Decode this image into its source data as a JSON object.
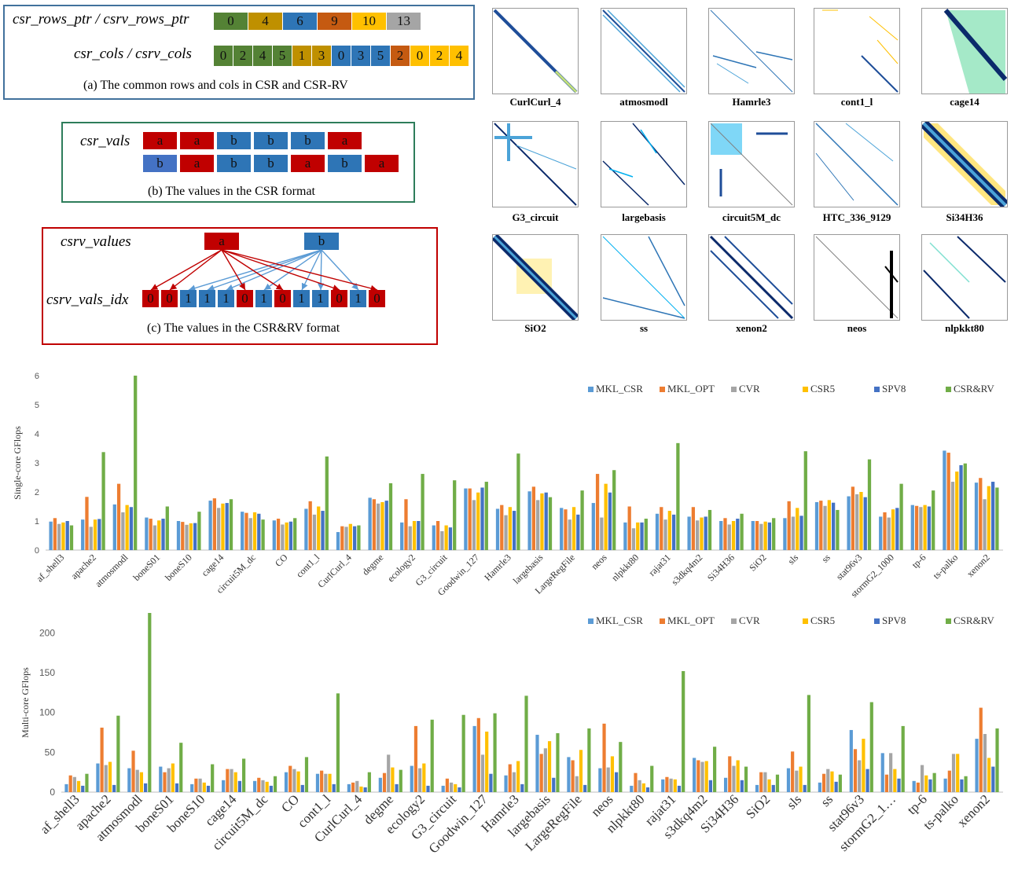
{
  "panel_a": {
    "rows_label": "csr_rows_ptr  / csrv_rows_ptr",
    "cols_label": "csr_cols / csrv_cols",
    "rows": [
      "0",
      "4",
      "6",
      "9",
      "10",
      "13"
    ],
    "rows_colors": [
      "#548235",
      "#bf9000",
      "#2e75b6",
      "#c55a11",
      "#ffc000",
      "#a5a5a5"
    ],
    "cols": [
      "0",
      "2",
      "4",
      "5",
      "1",
      "3",
      "0",
      "3",
      "5",
      "2",
      "0",
      "2",
      "4"
    ],
    "cols_colors": [
      "#548235",
      "#548235",
      "#548235",
      "#548235",
      "#bf9000",
      "#bf9000",
      "#2e75b6",
      "#2e75b6",
      "#2e75b6",
      "#c55a11",
      "#ffc000",
      "#ffc000",
      "#ffc000"
    ],
    "caption": "(a) The common rows and cols in CSR and CSR-RV"
  },
  "panel_b": {
    "label": "csr_vals",
    "row1": [
      "a",
      "a",
      "b",
      "b",
      "b",
      "a"
    ],
    "row2": [
      "b",
      "a",
      "b",
      "b",
      "a",
      "b",
      "a"
    ],
    "caption": "(b) The values in the CSR format"
  },
  "panel_c": {
    "values_label": "csrv_values",
    "idx_label": "csrv_vals_idx",
    "values": [
      "a",
      "b"
    ],
    "idx": [
      "0",
      "0",
      "1",
      "1",
      "1",
      "0",
      "1",
      "0",
      "1",
      "1",
      "0",
      "1",
      "0"
    ],
    "caption": "(c) The values in the CSR&RV format"
  },
  "colors": {
    "a": "#c00000",
    "b": "#2e75b6",
    "b_light": "#4472c4"
  },
  "matrices": [
    "CurlCurl_4",
    "atmosmodl",
    "Hamrle3",
    "cont1_l",
    "cage14",
    "G3_circuit",
    "largebasis",
    "circuit5M_dc",
    "HTC_336_9129",
    "Si34H36",
    "SiO2",
    "ss",
    "xenon2",
    "neos",
    "nlpkkt80"
  ],
  "chart_data": [
    {
      "type": "bar",
      "ylabel": "Single-core GFlops",
      "ylim": [
        0,
        6
      ],
      "yticks": [
        0,
        1,
        2,
        3,
        4,
        5,
        6
      ],
      "categories": [
        "af_shell3",
        "apache2",
        "atmosmodl",
        "boneS01",
        "boneS10",
        "cage14",
        "circuit5M_dc",
        "CO",
        "cont1_l",
        "CurlCurl_4",
        "degme",
        "ecology2",
        "G3_circuit",
        "Goodwin_127",
        "Hamrle3",
        "largebasis",
        "LargeRegFile",
        "neos",
        "nlpkkt80",
        "rajat31",
        "s3dkq4m2",
        "Si34H36",
        "SiO2",
        "sls",
        "ss",
        "stat96v3",
        "stormG2_1000",
        "tp-6",
        "ts-palko",
        "xenon2"
      ],
      "category_labels": [
        "af_shell3",
        "apache2",
        "atmosmodl",
        "boneS01",
        "boneS10",
        "cage14",
        "circuit5M_dc",
        "CO",
        "cont1_l",
        "CurlCurl_4",
        "degme",
        "ecology2",
        "G3_circuit",
        "Goodwin_127",
        "Hamrle3",
        "largebasis",
        "LargeRegFile",
        "neos",
        "nlpkkt80",
        "rajat31",
        "s3dkq4m2",
        "Si34H36",
        "SiO2",
        "sls",
        "ss",
        "stat96v3",
        "stormG2_1000",
        "tp-6",
        "ts-palko",
        "xenon2"
      ],
      "series": [
        {
          "name": "MKL_CSR",
          "color": "#5b9bd5",
          "values": [
            0.98,
            1.05,
            1.57,
            1.12,
            1.0,
            1.7,
            1.32,
            1.02,
            1.42,
            0.62,
            1.8,
            0.95,
            0.85,
            2.12,
            1.42,
            2.02,
            1.45,
            1.62,
            0.95,
            1.25,
            1.15,
            1.0,
            1.0,
            1.1,
            1.65,
            1.85,
            1.15,
            1.55,
            3.42,
            2.32
          ]
        },
        {
          "name": "MKL_OPT",
          "color": "#ed7d31",
          "values": [
            1.1,
            1.83,
            2.28,
            1.08,
            0.97,
            1.78,
            1.28,
            1.08,
            1.68,
            0.82,
            1.75,
            1.75,
            1.0,
            2.12,
            1.55,
            2.18,
            1.4,
            2.62,
            1.5,
            1.48,
            1.48,
            1.1,
            1.0,
            1.68,
            1.7,
            2.18,
            1.3,
            1.52,
            3.35,
            2.48
          ]
        },
        {
          "name": "CVR",
          "color": "#a5a5a5",
          "values": [
            0.9,
            0.8,
            1.3,
            0.85,
            0.87,
            1.45,
            1.1,
            0.88,
            1.22,
            0.8,
            1.6,
            0.82,
            0.65,
            1.72,
            1.2,
            1.72,
            1.05,
            1.12,
            0.75,
            1.05,
            1.02,
            0.88,
            0.9,
            1.15,
            1.52,
            1.92,
            1.12,
            1.48,
            2.35,
            1.75
          ]
        },
        {
          "name": "CSR5",
          "color": "#ffc000",
          "values": [
            0.95,
            1.05,
            1.55,
            1.02,
            0.92,
            1.6,
            1.3,
            0.95,
            1.5,
            0.9,
            1.65,
            1.0,
            0.85,
            1.98,
            1.48,
            1.95,
            1.48,
            2.28,
            0.95,
            1.35,
            1.12,
            1.0,
            0.98,
            1.45,
            1.72,
            2.0,
            1.4,
            1.55,
            2.7,
            2.2
          ]
        },
        {
          "name": "SPV8",
          "color": "#4472c4",
          "values": [
            1.0,
            1.07,
            1.48,
            1.08,
            0.93,
            1.62,
            1.25,
            0.98,
            1.35,
            0.82,
            1.7,
            1.0,
            0.78,
            2.15,
            1.35,
            1.98,
            1.22,
            1.98,
            0.95,
            1.22,
            1.15,
            1.08,
            0.95,
            1.18,
            1.63,
            1.82,
            1.45,
            1.5,
            2.92,
            2.35
          ]
        },
        {
          "name": "CSR&RV",
          "color": "#70ad47",
          "values": [
            0.85,
            3.37,
            6.0,
            1.5,
            1.32,
            1.75,
            1.05,
            1.1,
            3.22,
            0.85,
            2.3,
            2.62,
            2.4,
            2.35,
            3.32,
            1.82,
            2.05,
            2.75,
            1.08,
            3.68,
            1.38,
            1.25,
            1.1,
            3.4,
            1.38,
            3.12,
            2.28,
            2.05,
            2.98,
            2.15
          ]
        }
      ]
    },
    {
      "type": "bar",
      "ylabel": "Multi-core GFlops",
      "ylim": [
        0,
        225
      ],
      "yticks": [
        0,
        50,
        100,
        150,
        200
      ],
      "categories": [
        "af_shell3",
        "apache2",
        "atmosmodl",
        "boneS01",
        "boneS10",
        "cage14",
        "circuit5M_dc",
        "CO",
        "cont1_l",
        "CurlCurl_4",
        "degme",
        "ecology2",
        "G3_circuit",
        "Goodwin_127",
        "Hamrle3",
        "largebasis",
        "LargeRegFile",
        "neos",
        "nlpkkt80",
        "rajat31",
        "s3dkq4m2",
        "Si34H36",
        "SiO2",
        "sls",
        "ss",
        "stat96v3",
        "stormG2_1000",
        "tp-6",
        "ts-palko",
        "xenon2"
      ],
      "category_labels": [
        "af_shell3",
        "apache2",
        "atmosmodl",
        "boneS01",
        "boneS10",
        "cage14",
        "circuit5M_dc",
        "CO",
        "cont1_l",
        "CurlCurl_4",
        "degme",
        "ecology2",
        "G3_circuit",
        "Goodwin_127",
        "Hamrle3",
        "largebasis",
        "LargeRegFile",
        "neos",
        "nlpkkt80",
        "rajat31",
        "s3dkq4m2",
        "Si34H36",
        "SiO2",
        "sls",
        "ss",
        "stat96v3",
        "stormG2_1…",
        "tp-6",
        "ts-palko",
        "xenon2"
      ],
      "series": [
        {
          "name": "MKL_CSR",
          "color": "#5b9bd5",
          "values": [
            10,
            36,
            30,
            32,
            10,
            15,
            14,
            25,
            23,
            10,
            18,
            33,
            8,
            83,
            21,
            72,
            44,
            30,
            8,
            16,
            43,
            18,
            9,
            30,
            12,
            78,
            49,
            14,
            17,
            67
          ]
        },
        {
          "name": "MKL_OPT",
          "color": "#ed7d31",
          "values": [
            21,
            81,
            52,
            25,
            17,
            29,
            18,
            33,
            27,
            12,
            24,
            83,
            17,
            93,
            35,
            48,
            40,
            86,
            24,
            19,
            40,
            45,
            25,
            51,
            23,
            54,
            22,
            12,
            27,
            106
          ]
        },
        {
          "name": "CVR",
          "color": "#a5a5a5",
          "values": [
            19,
            34,
            28,
            30,
            17,
            29,
            15,
            29,
            23,
            14,
            47,
            30,
            12,
            47,
            25,
            55,
            20,
            31,
            15,
            17,
            38,
            33,
            25,
            27,
            29,
            40,
            49,
            34,
            48,
            73
          ]
        },
        {
          "name": "CSR5",
          "color": "#ffc000",
          "values": [
            14,
            38,
            25,
            36,
            12,
            25,
            13,
            26,
            23,
            7,
            31,
            36,
            10,
            76,
            39,
            64,
            53,
            45,
            11,
            16,
            39,
            40,
            16,
            32,
            26,
            67,
            29,
            21,
            48,
            43
          ]
        },
        {
          "name": "SPV8",
          "color": "#4472c4",
          "values": [
            8,
            9,
            11,
            11,
            8,
            14,
            8,
            9,
            10,
            6,
            10,
            8,
            6,
            23,
            10,
            18,
            9,
            25,
            6,
            8,
            15,
            15,
            9,
            9,
            13,
            29,
            17,
            16,
            16,
            32
          ]
        },
        {
          "name": "CSR&RV",
          "color": "#70ad47",
          "values": [
            23,
            96,
            225,
            62,
            35,
            42,
            20,
            44,
            124,
            25,
            28,
            91,
            97,
            99,
            121,
            74,
            80,
            63,
            33,
            152,
            57,
            32,
            22,
            122,
            22,
            113,
            83,
            24,
            20,
            80
          ]
        }
      ]
    }
  ]
}
